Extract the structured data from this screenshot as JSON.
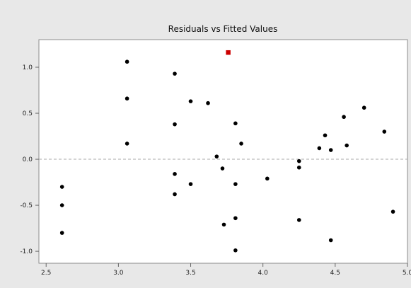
{
  "chart_data": {
    "type": "scatter",
    "title": "Residuals vs Fitted Values",
    "xlabel": "",
    "ylabel": "",
    "xlim": [
      2.45,
      5.0
    ],
    "ylim": [
      -1.13,
      1.3
    ],
    "x_ticks": [
      2.5,
      3.0,
      3.5,
      4.0,
      4.5,
      5.0
    ],
    "x_tick_labels": [
      "2.5",
      "3.0",
      "3.5",
      "4.0",
      "4.5",
      "5.0"
    ],
    "y_ticks": [
      -1.0,
      -0.5,
      0.0,
      0.5,
      1.0
    ],
    "y_tick_labels": [
      "-1.0",
      "-0.5",
      "0.0",
      "0.5",
      "1.0"
    ],
    "reference_line_y": 0,
    "grid": false,
    "point_color": "#000000",
    "highlight_color": "#cc0000",
    "points": [
      {
        "x": 2.61,
        "y": -0.3
      },
      {
        "x": 2.61,
        "y": -0.5
      },
      {
        "x": 2.61,
        "y": -0.8
      },
      {
        "x": 3.06,
        "y": 1.06
      },
      {
        "x": 3.06,
        "y": 0.66
      },
      {
        "x": 3.06,
        "y": 0.17
      },
      {
        "x": 3.39,
        "y": 0.93
      },
      {
        "x": 3.39,
        "y": 0.38
      },
      {
        "x": 3.39,
        "y": -0.16
      },
      {
        "x": 3.39,
        "y": -0.38
      },
      {
        "x": 3.5,
        "y": 0.63
      },
      {
        "x": 3.5,
        "y": -0.27
      },
      {
        "x": 3.62,
        "y": 0.61
      },
      {
        "x": 3.68,
        "y": 0.03
      },
      {
        "x": 3.72,
        "y": -0.1
      },
      {
        "x": 3.73,
        "y": -0.71
      },
      {
        "x": 3.81,
        "y": 0.39
      },
      {
        "x": 3.81,
        "y": -0.27
      },
      {
        "x": 3.81,
        "y": -0.64
      },
      {
        "x": 3.81,
        "y": -0.99
      },
      {
        "x": 3.85,
        "y": 0.17
      },
      {
        "x": 4.03,
        "y": -0.21
      },
      {
        "x": 4.25,
        "y": -0.02
      },
      {
        "x": 4.25,
        "y": -0.09
      },
      {
        "x": 4.25,
        "y": -0.66
      },
      {
        "x": 4.39,
        "y": 0.12
      },
      {
        "x": 4.43,
        "y": 0.26
      },
      {
        "x": 4.47,
        "y": 0.1
      },
      {
        "x": 4.47,
        "y": -0.88
      },
      {
        "x": 4.56,
        "y": 0.46
      },
      {
        "x": 4.58,
        "y": 0.15
      },
      {
        "x": 4.7,
        "y": 0.56
      },
      {
        "x": 4.84,
        "y": 0.3
      },
      {
        "x": 4.9,
        "y": -0.57
      }
    ],
    "highlighted_points": [
      {
        "x": 3.76,
        "y": 1.16
      }
    ]
  }
}
